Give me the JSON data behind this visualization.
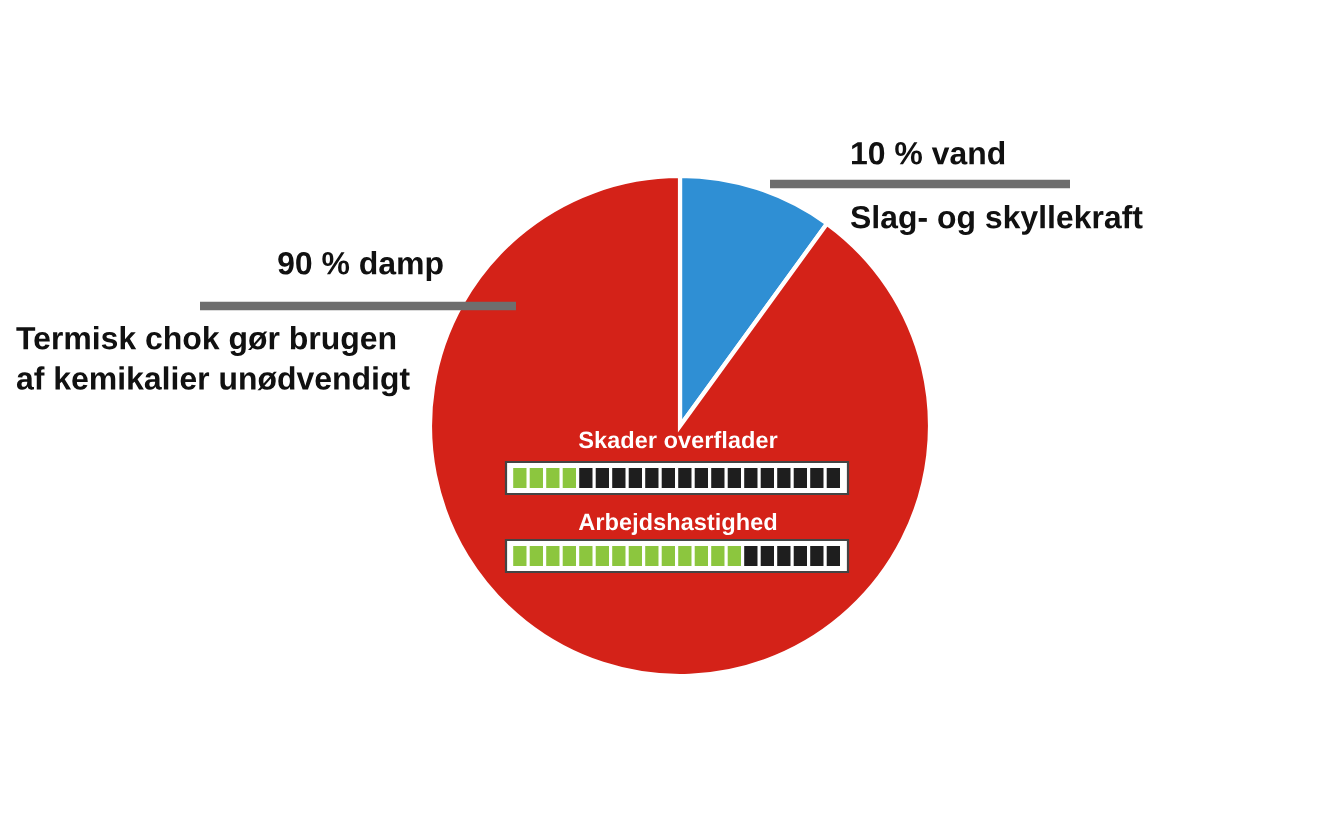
{
  "chart_data": {
    "type": "pie",
    "categories": [
      "vand",
      "damp"
    ],
    "values": [
      10,
      90
    ],
    "value_labels": [
      "10 %",
      "90 %"
    ],
    "colors": [
      "#2f8fd4",
      "#d42218"
    ],
    "annotations": [
      "Slag- og skyllekraft",
      "Termisk chok gør brugen\naf kemikalier unødvendigt",
      "Skader overflader",
      "Arbejdshastighed"
    ]
  }
}
